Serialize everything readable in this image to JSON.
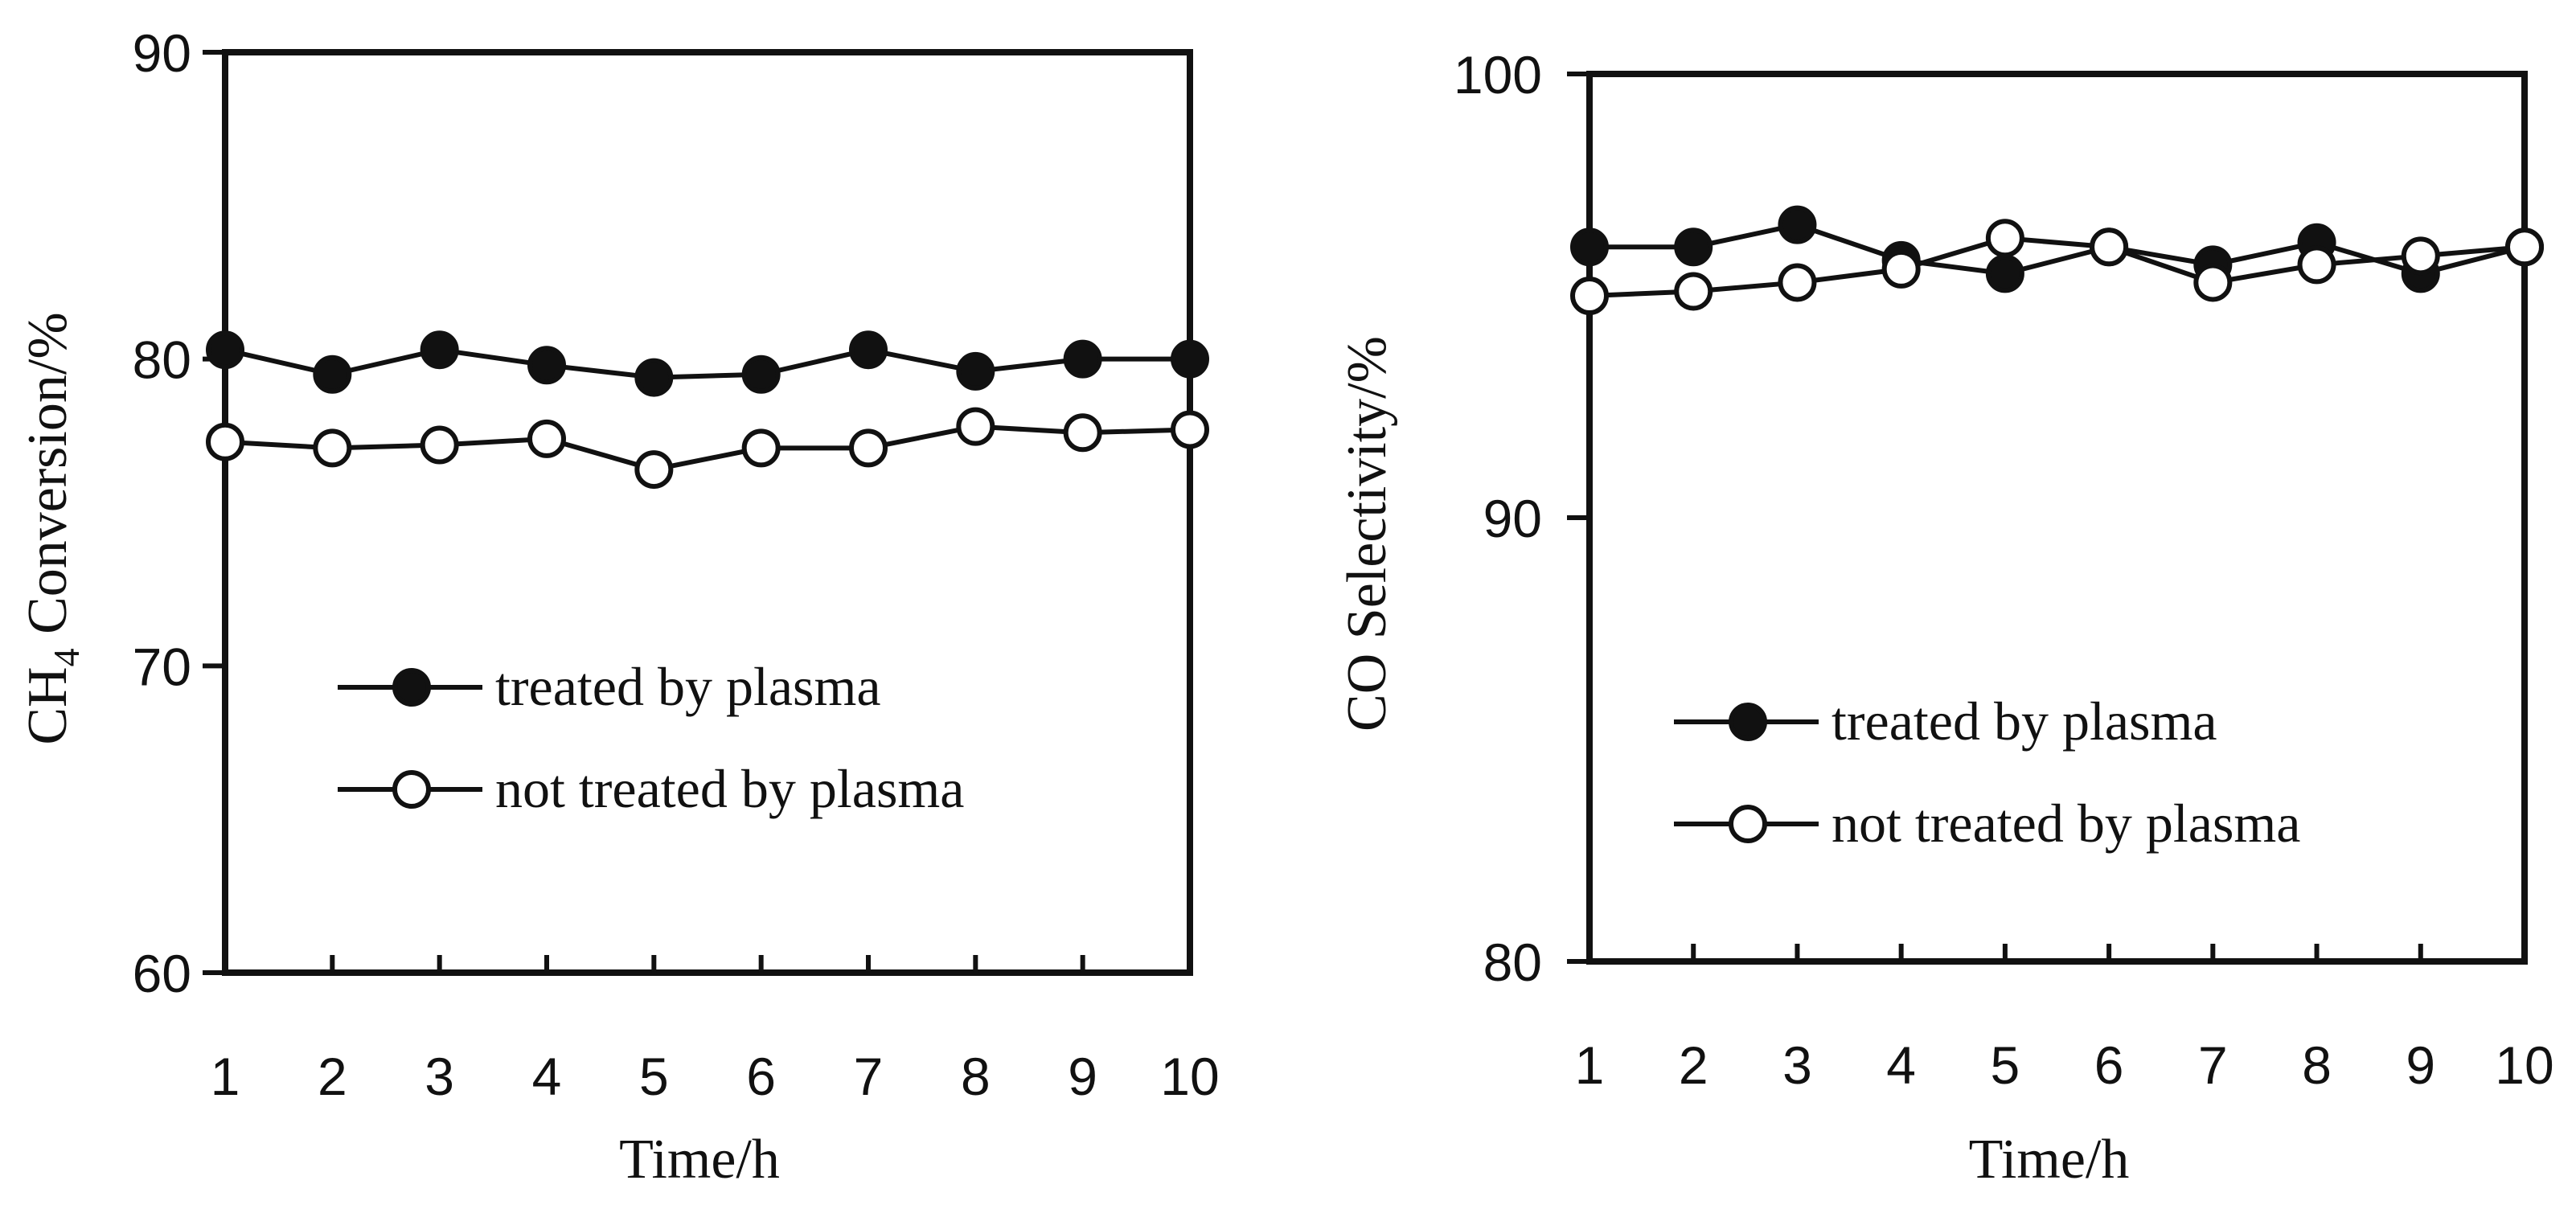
{
  "chart_data": [
    {
      "type": "line",
      "title": "",
      "xlabel": "Time/h",
      "ylabel": {
        "prefix": "CH",
        "subscript": "4",
        "suffix": " Conversion/%"
      },
      "xlim": [
        1,
        10
      ],
      "ylim": [
        60,
        90
      ],
      "x": [
        1,
        2,
        3,
        4,
        5,
        6,
        7,
        8,
        9,
        10
      ],
      "y_ticks": [
        60,
        70,
        80,
        90
      ],
      "grid": false,
      "legend_position": "lower-center",
      "series": [
        {
          "name": "treated by plasma",
          "marker": "filled-circle",
          "values": [
            80.3,
            79.5,
            80.3,
            79.8,
            79.4,
            79.5,
            80.3,
            79.6,
            80.0,
            80.0
          ]
        },
        {
          "name": "not treated by plasma",
          "marker": "open-circle",
          "values": [
            77.3,
            77.1,
            77.2,
            77.4,
            76.4,
            77.1,
            77.1,
            77.8,
            77.6,
            77.7
          ]
        }
      ]
    },
    {
      "type": "line",
      "title": "",
      "xlabel": "Time/h",
      "ylabel": {
        "prefix": "CO Selectivity/%",
        "subscript": "",
        "suffix": ""
      },
      "xlim": [
        1,
        10
      ],
      "ylim": [
        80,
        100
      ],
      "x": [
        1,
        2,
        3,
        4,
        5,
        6,
        7,
        8,
        9,
        10
      ],
      "y_ticks": [
        80,
        90,
        100
      ],
      "grid": false,
      "legend_position": "lower-center",
      "series": [
        {
          "name": "treated by plasma",
          "marker": "filled-circle",
          "values": [
            96.1,
            96.1,
            96.6,
            95.8,
            95.5,
            96.1,
            95.7,
            96.2,
            95.5,
            96.1
          ]
        },
        {
          "name": "not treated by plasma",
          "marker": "open-circle",
          "values": [
            95.0,
            95.1,
            95.3,
            95.6,
            96.3,
            96.1,
            95.3,
            95.7,
            95.9,
            96.1
          ]
        }
      ]
    }
  ]
}
